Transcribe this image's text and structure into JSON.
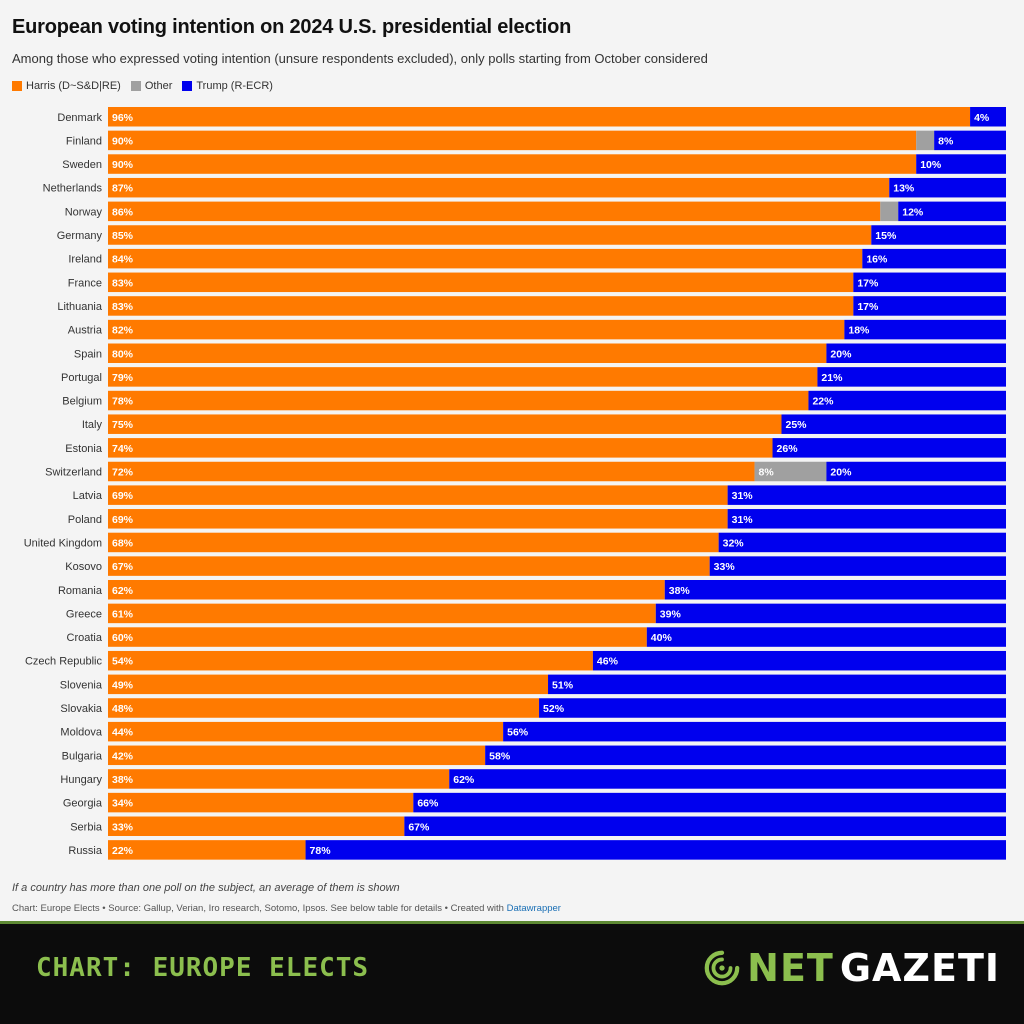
{
  "chart_data": {
    "type": "bar",
    "orientation": "horizontal",
    "stacked": true,
    "normalized": true,
    "title": "European voting intention on 2024 U.S. presidential election",
    "subtitle": "Among those who expressed voting intention (unsure respondents excluded), only polls starting from October considered",
    "legend_position": "top-left",
    "series_order": [
      "Harris (D~S&D|RE)",
      "Other",
      "Trump (R-ECR)"
    ],
    "colors": {
      "Harris (D~S&D|RE)": "#ff7a00",
      "Other": "#a0a0a0",
      "Trump (R-ECR)": "#0000ee"
    },
    "categories": [
      "Denmark",
      "Finland",
      "Sweden",
      "Netherlands",
      "Norway",
      "Germany",
      "Ireland",
      "France",
      "Lithuania",
      "Austria",
      "Spain",
      "Portugal",
      "Belgium",
      "Italy",
      "Estonia",
      "Switzerland",
      "Latvia",
      "Poland",
      "United Kingdom",
      "Kosovo",
      "Romania",
      "Greece",
      "Croatia",
      "Czech Republic",
      "Slovenia",
      "Slovakia",
      "Moldova",
      "Bulgaria",
      "Hungary",
      "Georgia",
      "Serbia",
      "Russia"
    ],
    "series": [
      {
        "name": "Harris (D~S&D|RE)",
        "values": [
          96,
          90,
          90,
          87,
          86,
          85,
          84,
          83,
          83,
          82,
          80,
          79,
          78,
          75,
          74,
          72,
          69,
          69,
          68,
          67,
          62,
          61,
          60,
          54,
          49,
          48,
          44,
          42,
          38,
          34,
          33,
          22
        ]
      },
      {
        "name": "Other",
        "values": [
          0,
          2,
          0,
          0,
          2,
          0,
          0,
          0,
          0,
          0,
          0,
          0,
          0,
          0,
          0,
          8,
          0,
          0,
          0,
          0,
          0,
          0,
          0,
          0,
          0,
          0,
          0,
          0,
          0,
          0,
          0,
          0
        ]
      },
      {
        "name": "Trump (R-ECR)",
        "values": [
          4,
          8,
          10,
          13,
          12,
          15,
          16,
          17,
          17,
          18,
          20,
          21,
          22,
          25,
          26,
          20,
          31,
          31,
          32,
          33,
          38,
          39,
          40,
          46,
          51,
          52,
          56,
          58,
          62,
          66,
          67,
          78
        ]
      }
    ],
    "visible_labels": {
      "Harris (D~S&D|RE)": [
        "96%",
        "90%",
        "90%",
        "87%",
        "86%",
        "85%",
        "84%",
        "83%",
        "83%",
        "82%",
        "80%",
        "79%",
        "78%",
        "75%",
        "74%",
        "72%",
        "69%",
        "69%",
        "68%",
        "67%",
        "62%",
        "61%",
        "60%",
        "54%",
        "49%",
        "48%",
        "44%",
        "42%",
        "38%",
        "34%",
        "33%",
        "22%"
      ],
      "Other": [
        "",
        "",
        "",
        "",
        "",
        "",
        "",
        "",
        "",
        "",
        "",
        "",
        "",
        "",
        "",
        "8%",
        "",
        "",
        "",
        "",
        "",
        "",
        "",
        "",
        "",
        "",
        "",
        "",
        "",
        "",
        "",
        ""
      ],
      "Trump (R-ECR)": [
        "4%",
        "8%",
        "10%",
        "13%",
        "12%",
        "15%",
        "16%",
        "17%",
        "17%",
        "18%",
        "20%",
        "21%",
        "22%",
        "25%",
        "26%",
        "20%",
        "31%",
        "31%",
        "32%",
        "33%",
        "38%",
        "39%",
        "40%",
        "46%",
        "51%",
        "52%",
        "56%",
        "58%",
        "62%",
        "66%",
        "67%",
        "78%"
      ]
    },
    "xlim": [
      0,
      100
    ],
    "unit": "%",
    "grid": false
  },
  "footnote": "If a country has more than one poll on the subject, an average of them is shown",
  "source_prefix": "Chart: Europe Elects • Source: Gallup, Verian, Iro research, Sotomo, Ipsos. See below table for details • Created with ",
  "source_link": "Datawrapper",
  "banner": {
    "left_label": "CHART: EUROPE ELECTS",
    "logo_part1": "NET",
    "logo_part2": "GAZETI",
    "accent": "#8cbf4e"
  }
}
